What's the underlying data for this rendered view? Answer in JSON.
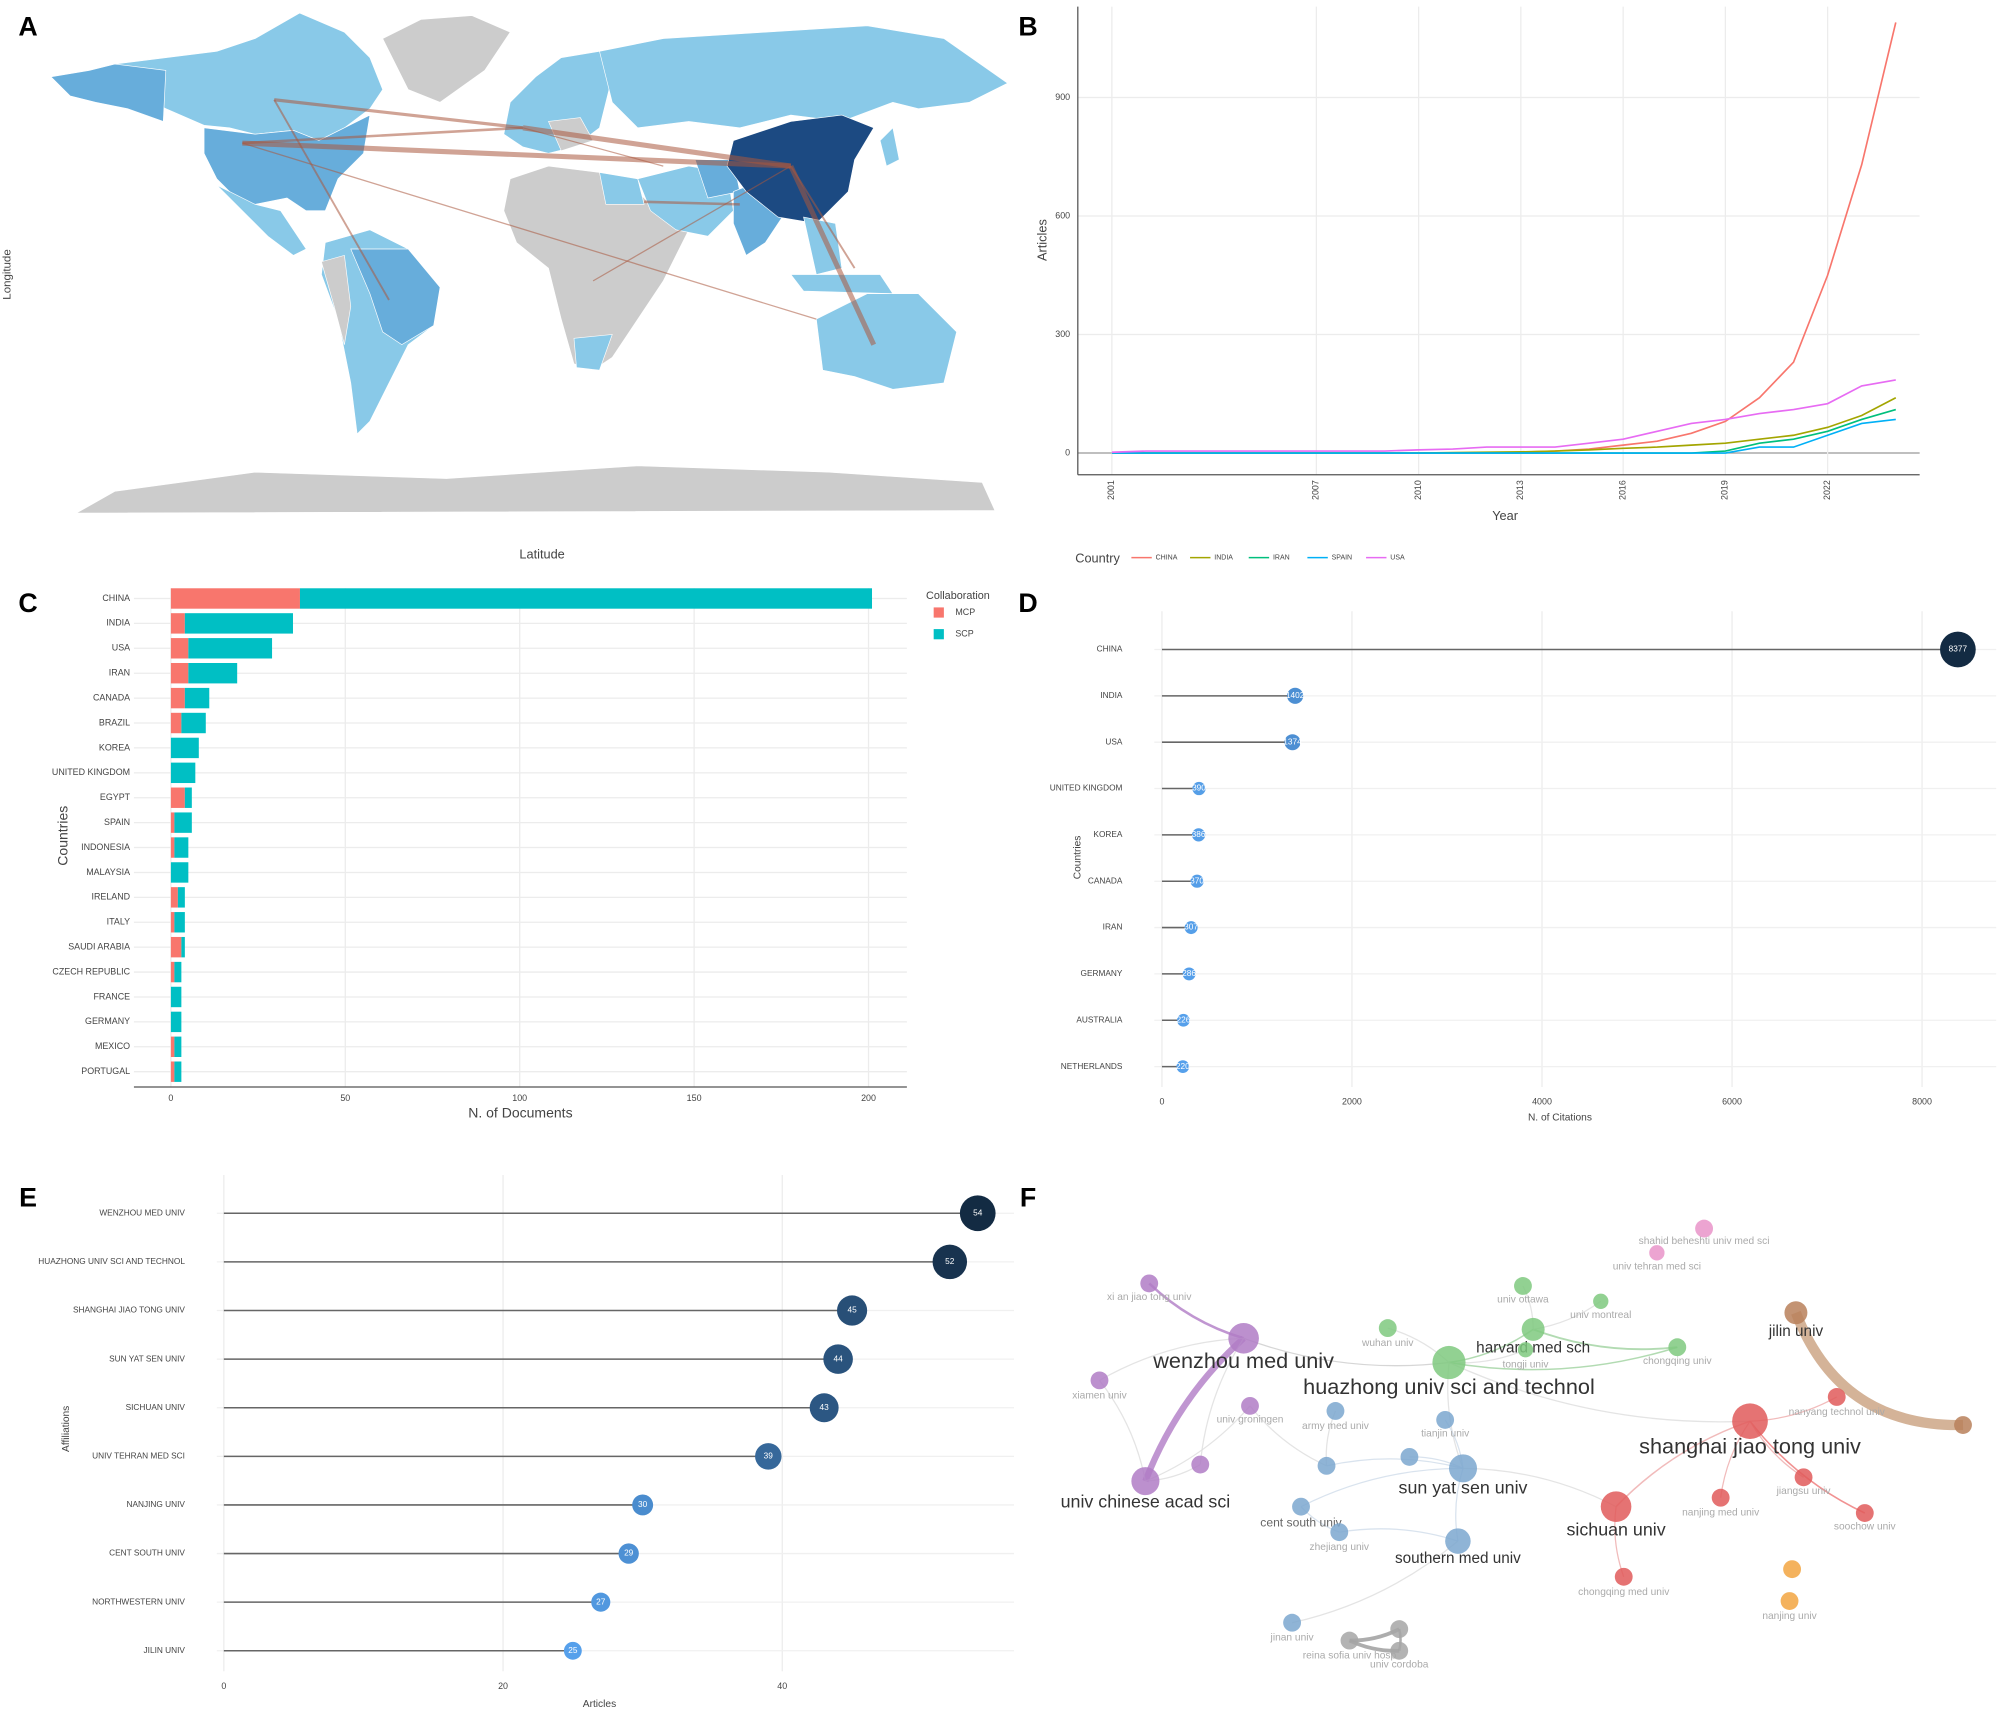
{
  "chart_data": [
    {
      "type": "map",
      "label": "A",
      "xlabel": "Latitude",
      "ylabel": "Longitude"
    },
    {
      "type": "line",
      "label": "B",
      "xlabel": "Year",
      "ylabel": "Articles",
      "legend_title": "Country",
      "x": [
        2001,
        2002,
        2003,
        2004,
        2005,
        2006,
        2007,
        2008,
        2009,
        2010,
        2011,
        2012,
        2013,
        2014,
        2015,
        2016,
        2017,
        2018,
        2019,
        2020,
        2021,
        2022,
        2023,
        2024
      ],
      "xlim": [
        2000,
        2024.7
      ],
      "xticks": [
        2001,
        2007,
        2010,
        2013,
        2016,
        2019,
        2022
      ],
      "ylim": [
        -55,
        1130
      ],
      "yticks": [
        0,
        300,
        600,
        900
      ],
      "grid": true,
      "series": [
        {
          "name": "CHINA",
          "color": "#f8766d",
          "values": [
            0,
            0,
            0,
            0,
            0,
            0,
            0,
            0,
            0,
            0,
            0,
            1,
            2,
            5,
            10,
            20,
            30,
            50,
            80,
            140,
            230,
            450,
            730,
            1090
          ]
        },
        {
          "name": "INDIA",
          "color": "#a3a500",
          "values": [
            0,
            0,
            0,
            0,
            0,
            0,
            0,
            0,
            0,
            0,
            1,
            2,
            3,
            5,
            8,
            12,
            15,
            20,
            25,
            35,
            45,
            65,
            95,
            140
          ]
        },
        {
          "name": "IRAN",
          "color": "#00bf7d",
          "values": [
            0,
            0,
            0,
            0,
            0,
            0,
            0,
            0,
            0,
            0,
            0,
            0,
            0,
            0,
            0,
            0,
            0,
            0,
            5,
            25,
            35,
            55,
            85,
            110
          ]
        },
        {
          "name": "SPAIN",
          "color": "#00b0f6",
          "values": [
            0,
            0,
            0,
            0,
            0,
            0,
            0,
            0,
            0,
            0,
            0,
            0,
            0,
            0,
            0,
            0,
            0,
            0,
            0,
            15,
            15,
            45,
            75,
            85
          ]
        },
        {
          "name": "USA",
          "color": "#e76bf3",
          "values": [
            2,
            5,
            5,
            5,
            5,
            5,
            5,
            5,
            5,
            8,
            10,
            15,
            15,
            15,
            25,
            35,
            55,
            75,
            85,
            100,
            110,
            125,
            170,
            185
          ]
        }
      ]
    },
    {
      "type": "bar",
      "label": "C",
      "xlabel": "N. of Documents",
      "ylabel": "Countries",
      "legend_title": "Collaboration",
      "categories": [
        "CHINA",
        "INDIA",
        "USA",
        "IRAN",
        "CANADA",
        "BRAZIL",
        "KOREA",
        "UNITED KINGDOM",
        "EGYPT",
        "SPAIN",
        "INDONESIA",
        "MALAYSIA",
        "IRELAND",
        "ITALY",
        "SAUDI ARABIA",
        "CZECH REPUBLIC",
        "FRANCE",
        "GERMANY",
        "MEXICO",
        "PORTUGAL"
      ],
      "xlim": [
        -10.6,
        211
      ],
      "xticks": [
        0,
        50,
        100,
        150,
        200
      ],
      "grid": true,
      "series": [
        {
          "name": "MCP",
          "color": "#f8766d",
          "values": [
            37,
            4,
            5,
            5,
            4,
            3,
            0,
            0,
            4,
            1,
            1,
            0,
            2,
            1,
            3,
            1,
            0,
            0,
            1,
            1
          ]
        },
        {
          "name": "SCP",
          "color": "#00bfc4",
          "values": [
            164,
            31,
            24,
            14,
            7,
            7,
            8,
            7,
            2,
            5,
            4,
            5,
            2,
            3,
            1,
            2,
            3,
            3,
            2,
            2
          ]
        }
      ]
    },
    {
      "type": "lollipop",
      "label": "D",
      "xlabel": "N. of Citations",
      "ylabel": "Countries",
      "categories": [
        "CHINA",
        "INDIA",
        "USA",
        "UNITED KINGDOM",
        "KOREA",
        "CANADA",
        "IRAN",
        "GERMANY",
        "AUSTRALIA",
        "NETHERLANDS"
      ],
      "values": [
        8377,
        1402,
        1374,
        390,
        386,
        370,
        307,
        286,
        226,
        220
      ],
      "xlim": [
        -80,
        8780
      ],
      "xticks": [
        0,
        2000,
        4000,
        6000,
        8000
      ],
      "grid": true
    },
    {
      "type": "lollipop",
      "label": "E",
      "xlabel": "Articles",
      "ylabel": "Affiliations",
      "categories": [
        "WENZHOU MED UNIV",
        "HUAZHONG UNIV SCI AND TECHNOL",
        "SHANGHAI JIAO TONG UNIV",
        "SUN YAT SEN UNIV",
        "SICHUAN UNIV",
        "UNIV TEHRAN MED SCI",
        "NANJING UNIV",
        "CENT SOUTH UNIV",
        "NORTHWESTERN UNIV",
        "JILIN UNIV"
      ],
      "values": [
        54,
        52,
        45,
        44,
        43,
        39,
        30,
        29,
        27,
        25
      ],
      "xlim": [
        -0.5,
        56.6
      ],
      "xticks": [
        0,
        20,
        40
      ],
      "grid": true
    },
    {
      "type": "network",
      "label": "F",
      "nodes": [
        {
          "label": "wenzhou med univ",
          "color": "#b07cc6"
        },
        {
          "label": "huazhong univ sci and technol",
          "color": "#7fc97f"
        },
        {
          "label": "shanghai jiao tong univ",
          "color": "#e05a5a"
        },
        {
          "label": "sun yat sen univ",
          "color": "#7ba7cf"
        },
        {
          "label": "sichuan univ",
          "color": "#e05a5a"
        },
        {
          "label": "univ chinese acad sci",
          "color": "#b07cc6"
        },
        {
          "label": "harvard med sch",
          "color": "#7fc97f"
        },
        {
          "label": "jilin univ",
          "color": "#b8805a"
        },
        {
          "label": "southern med univ",
          "color": "#7ba7cf"
        },
        {
          "label": "cent south univ",
          "color": "#7ba7cf"
        },
        {
          "label": "shahid beheshti univ med sci",
          "color": "#e994c9"
        },
        {
          "label": "univ tehran med sci",
          "color": "#e994c9"
        },
        {
          "label": "univ ottawa",
          "color": "#7fc97f"
        },
        {
          "label": "univ montreal",
          "color": "#7fc97f"
        },
        {
          "label": "xi an jiao tong univ",
          "color": "#b07cc6"
        },
        {
          "label": "wuhan univ",
          "color": "#7fc97f"
        },
        {
          "label": "tongji univ",
          "color": "#7fc97f"
        },
        {
          "label": "chongqing univ",
          "color": "#7fc97f"
        },
        {
          "label": "xiamen univ",
          "color": "#b07cc6"
        },
        {
          "label": "univ groningen",
          "color": "#b07cc6"
        },
        {
          "label": "army med univ",
          "color": "#7ba7cf"
        },
        {
          "label": "tianjin univ",
          "color": "#7ba7cf"
        },
        {
          "label": "nanyang technol univ",
          "color": "#e05a5a"
        },
        {
          "label": "jiangsu univ",
          "color": "#e05a5a"
        },
        {
          "label": "soochow univ",
          "color": "#e05a5a"
        },
        {
          "label": "nanjing med univ",
          "color": "#e05a5a"
        },
        {
          "label": "chongqing med univ",
          "color": "#e05a5a"
        },
        {
          "label": "zhejiang univ",
          "color": "#7ba7cf"
        },
        {
          "label": "jinan univ",
          "color": "#7ba7cf"
        },
        {
          "label": "reina sofia univ hosp",
          "color": "#a6a6a6"
        },
        {
          "label": "univ cordoba",
          "color": "#a6a6a6"
        },
        {
          "label": "nanjing univ",
          "color": "#f2a541"
        }
      ]
    }
  ]
}
